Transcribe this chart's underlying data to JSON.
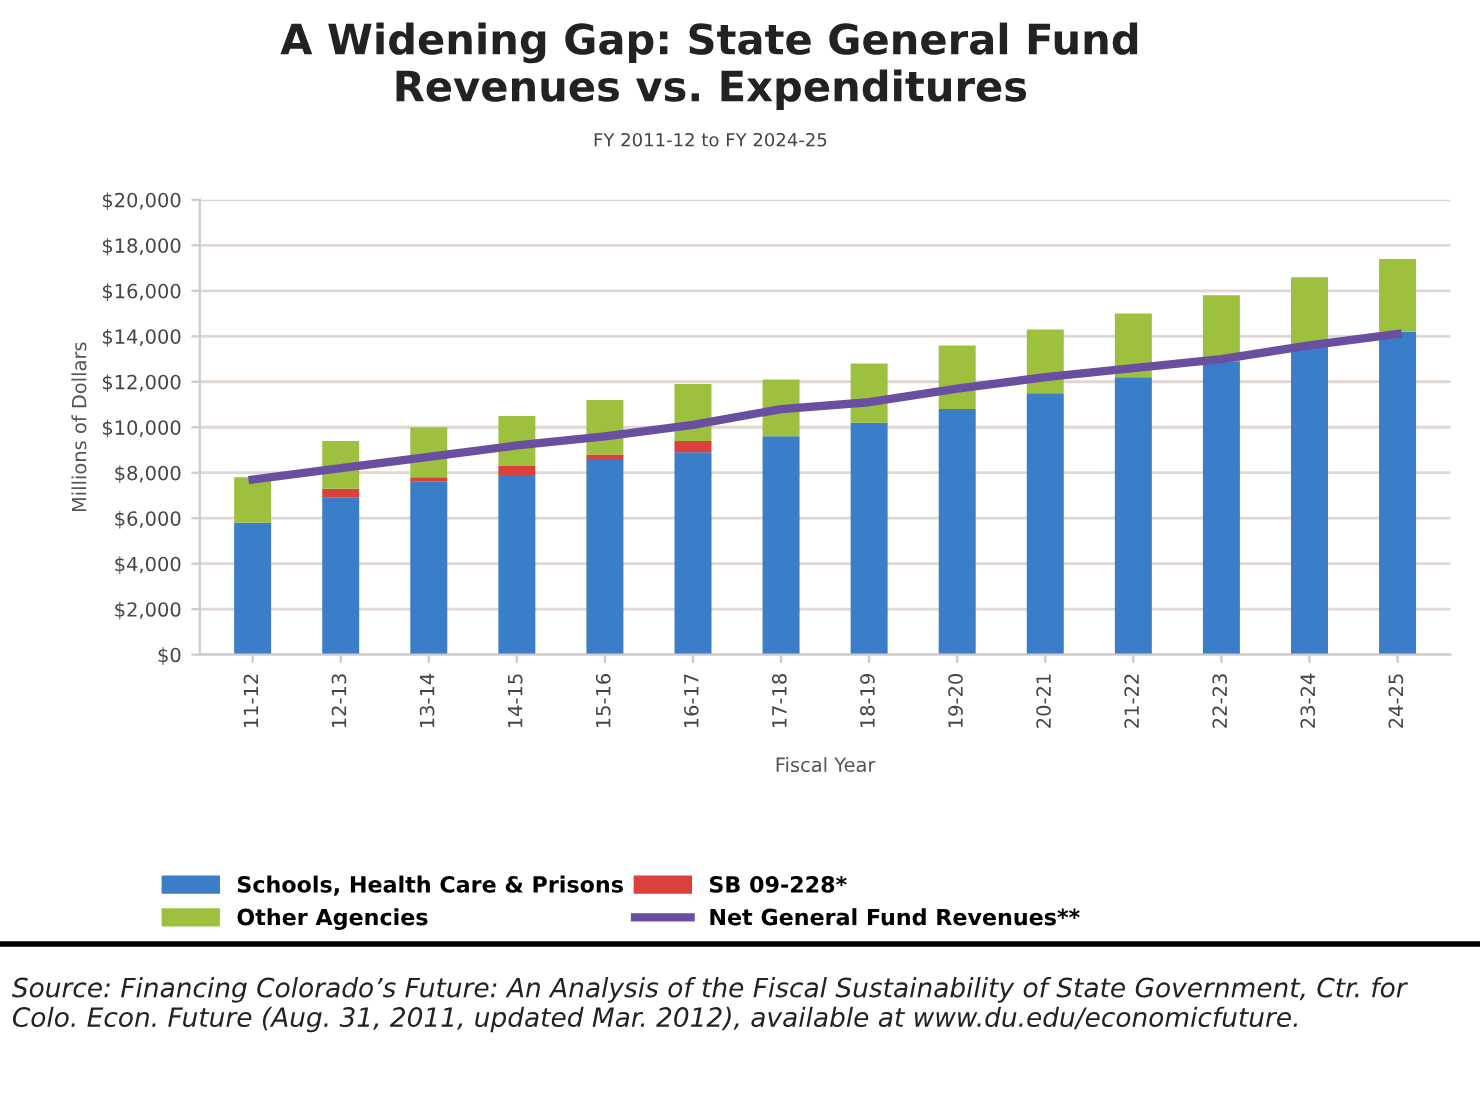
{
  "chart_data": {
    "type": "bar",
    "stacked": true,
    "title": "A Widening Gap: State General Fund\nRevenues vs. Expenditures",
    "subtitle": "FY 2011-12 to FY 2024-25",
    "xlabel": "Fiscal Year",
    "ylabel": "Millions of Dollars",
    "categories": [
      "11-12",
      "12-13",
      "13-14",
      "14-15",
      "15-16",
      "16-17",
      "17-18",
      "18-19",
      "19-20",
      "20-21",
      "21-22",
      "22-23",
      "23-24",
      "24-25"
    ],
    "series": [
      {
        "name": "Schools, Health Care & Prisons",
        "color": "#3a7dc9",
        "values": [
          5800,
          6900,
          7600,
          7900,
          8600,
          8900,
          9600,
          10200,
          10800,
          11500,
          12200,
          12900,
          13600,
          14200
        ]
      },
      {
        "name": "SB 09-228*",
        "color": "#d9413a",
        "values": [
          0,
          400,
          200,
          400,
          200,
          500,
          0,
          0,
          0,
          0,
          0,
          0,
          0,
          0
        ]
      },
      {
        "name": "Other Agencies",
        "color": "#9dc13f",
        "values": [
          2000,
          2100,
          2200,
          2200,
          2400,
          2500,
          2500,
          2600,
          2800,
          2800,
          2800,
          2900,
          3000,
          3200
        ]
      },
      {
        "name": "Net General Fund Revenues**",
        "type": "line",
        "color": "#6a4fa0",
        "values": [
          7700,
          8200,
          8700,
          9200,
          9600,
          10100,
          10800,
          11100,
          11700,
          12200,
          12600,
          13000,
          13600,
          14100
        ]
      }
    ],
    "ylim": [
      0,
      20000
    ],
    "yticks": [
      {
        "value": 0,
        "label": "$0"
      },
      {
        "value": 2000,
        "label": "$2,000"
      },
      {
        "value": 4000,
        "label": "$4,000"
      },
      {
        "value": 6000,
        "label": "$6,000"
      },
      {
        "value": 8000,
        "label": "$8,000"
      },
      {
        "value": 10000,
        "label": "$10,000"
      },
      {
        "value": 12000,
        "label": "$12,000"
      },
      {
        "value": 14000,
        "label": "$14,000"
      },
      {
        "value": 16000,
        "label": "$16,000"
      },
      {
        "value": 18000,
        "label": "$18,000"
      },
      {
        "value": 20000,
        "label": "$20,000"
      }
    ],
    "grid": "y",
    "legend": "bottom",
    "annotations": [
      "Source: Financing Colorado’s Future: An Analysis of the Fiscal Sustainability of State Government, Ctr. for Colo. Econ. Future (Aug. 31, 2011, updated Mar. 2012), available at www.du.edu/economicfuture."
    ]
  }
}
